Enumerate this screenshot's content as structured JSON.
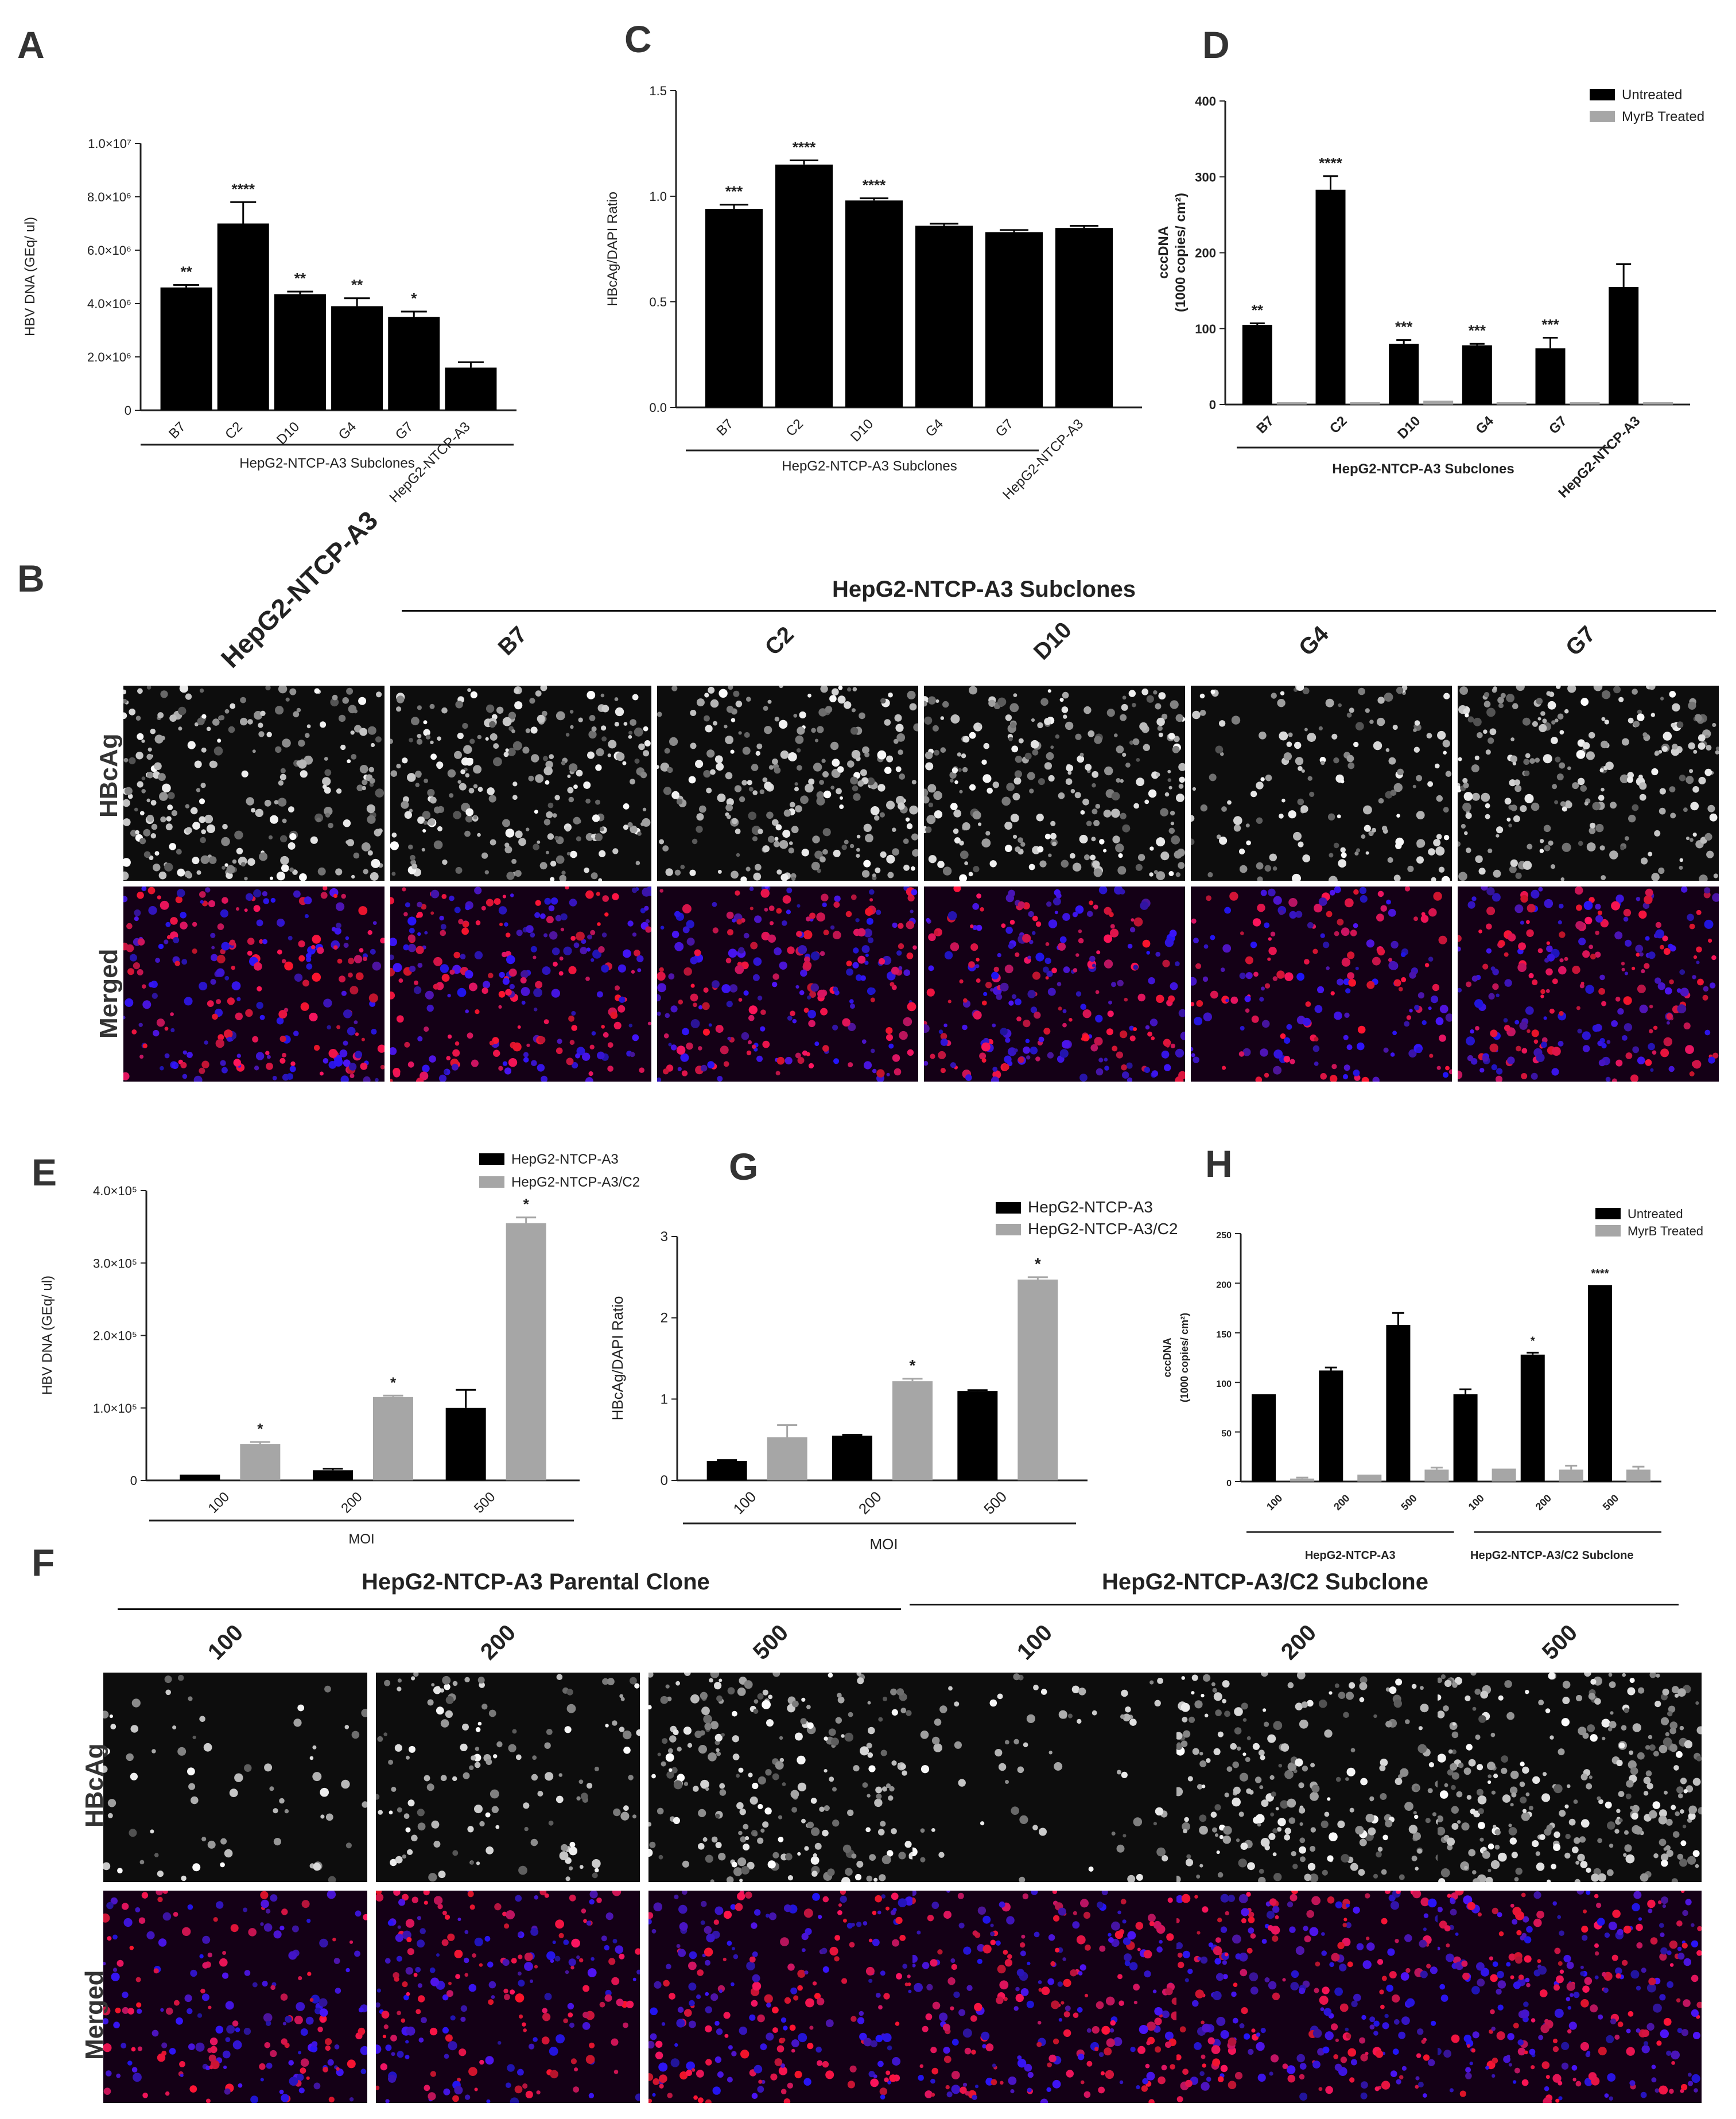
{
  "panel_letters": {
    "A": "A",
    "B": "B",
    "C": "C",
    "D": "D",
    "E": "E",
    "F": "F",
    "G": "G",
    "H": "H"
  },
  "chart_data": [
    {
      "id": "A",
      "type": "bar",
      "ylabel": "HBV DNA (GEq/ ul)",
      "categories": [
        "B7",
        "C2",
        "D10",
        "G4",
        "G7",
        "HepG2-NTCP-A3"
      ],
      "values": [
        4600000,
        7000000,
        4350000,
        3900000,
        3500000,
        1600000
      ],
      "errors": [
        100000,
        800000,
        100000,
        300000,
        200000,
        200000
      ],
      "significance": [
        "**",
        "****",
        "**",
        "**",
        "*",
        ""
      ],
      "ylim": [
        0,
        10000000
      ],
      "yticks": [
        0,
        2000000,
        4000000,
        6000000,
        8000000,
        10000000
      ],
      "ytick_labels": [
        "0",
        "2.0×10⁶",
        "4.0×10⁶",
        "6.0×10⁶",
        "8.0×10⁶",
        "1.0×10⁷"
      ],
      "group_label": "HepG2-NTCP-A3 Subclones"
    },
    {
      "id": "C",
      "type": "bar",
      "ylabel": "HBcAg/DAPI Ratio",
      "categories": [
        "B7",
        "C2",
        "D10",
        "G4",
        "G7",
        "HepG2-NTCP-A3"
      ],
      "values": [
        0.94,
        1.15,
        0.98,
        0.86,
        0.83,
        0.85
      ],
      "errors": [
        0.02,
        0.02,
        0.01,
        0.01,
        0.01,
        0.01
      ],
      "significance": [
        "***",
        "****",
        "****",
        "",
        "",
        ""
      ],
      "ylim": [
        0,
        1.5
      ],
      "yticks": [
        0,
        0.5,
        1.0,
        1.5
      ],
      "ytick_labels": [
        "0.0",
        "0.5",
        "1.0",
        "1.5"
      ],
      "group_label": "HepG2-NTCP-A3 Subclones"
    },
    {
      "id": "D",
      "type": "bar",
      "ylabel": "cccDNA",
      "ylabel2": "(1000 copies/ cm²)",
      "categories": [
        "B7",
        "C2",
        "D10",
        "G4",
        "G7",
        "HepG2-NTCP-A3"
      ],
      "series": [
        {
          "name": "Untreated",
          "values": [
            105,
            283,
            80,
            78,
            74,
            155
          ],
          "errors": [
            2,
            18,
            5,
            2,
            14,
            30
          ]
        },
        {
          "name": "MyrB Treated",
          "values": [
            3,
            3,
            5,
            3,
            3,
            3
          ],
          "errors": [
            0,
            0,
            0,
            0,
            0,
            0
          ]
        }
      ],
      "significance": [
        "**",
        "****",
        "***",
        "***",
        "***",
        ""
      ],
      "ylim": [
        0,
        400
      ],
      "yticks": [
        0,
        100,
        200,
        300,
        400
      ],
      "ytick_labels": [
        "0",
        "100",
        "200",
        "300",
        "400"
      ],
      "group_label": "HepG2-NTCP-A3 Subclones",
      "legend": "top-right",
      "colors": [
        "#000000",
        "#a6a6a6"
      ]
    },
    {
      "id": "E",
      "type": "bar",
      "ylabel": "HBV DNA (GEq/ ul)",
      "xlabel": "MOI",
      "categories": [
        "100",
        "200",
        "500"
      ],
      "series": [
        {
          "name": "HepG2-NTCP-A3",
          "values": [
            8000,
            14000,
            100000
          ],
          "errors": [
            0,
            2000,
            25000
          ]
        },
        {
          "name": "HepG2-NTCP-A3/C2",
          "values": [
            50000,
            115000,
            355000
          ],
          "errors": [
            3000,
            2000,
            8000
          ]
        }
      ],
      "significance": [
        "*",
        "*",
        "*"
      ],
      "ylim": [
        0,
        400000
      ],
      "yticks": [
        0,
        100000,
        200000,
        300000,
        400000
      ],
      "ytick_labels": [
        "0",
        "1.0×10⁵",
        "2.0×10⁵",
        "3.0×10⁵",
        "4.0×10⁵"
      ],
      "legend": "top-right",
      "colors": [
        "#000000",
        "#a6a6a6"
      ]
    },
    {
      "id": "G",
      "type": "bar",
      "ylabel": "HBcAg/DAPI Ratio",
      "xlabel": "MOI",
      "categories": [
        "100",
        "200",
        "500"
      ],
      "series": [
        {
          "name": "HepG2-NTCP-A3",
          "values": [
            0.24,
            0.55,
            1.1
          ],
          "errors": [
            0.01,
            0.01,
            0.01
          ]
        },
        {
          "name": "HepG2-NTCP-A3/C2",
          "values": [
            0.53,
            1.22,
            2.47
          ],
          "errors": [
            0.15,
            0.03,
            0.03
          ]
        }
      ],
      "significance": [
        "",
        "*",
        "*"
      ],
      "ylim": [
        0,
        3
      ],
      "yticks": [
        0,
        1,
        2,
        3
      ],
      "ytick_labels": [
        "0",
        "1",
        "2",
        "3"
      ],
      "legend": "top-right",
      "colors": [
        "#000000",
        "#a6a6a6"
      ]
    },
    {
      "id": "H",
      "type": "bar",
      "ylabel": "cccDNA",
      "ylabel2": "(1000 copies/ cm²)",
      "categories": [
        "100",
        "200",
        "500",
        "100",
        "200",
        "500"
      ],
      "series": [
        {
          "name": "Untreated",
          "values": [
            88,
            112,
            158,
            88,
            128,
            198
          ],
          "errors": [
            0,
            3,
            12,
            5,
            2,
            0
          ]
        },
        {
          "name": "MyrB Treated",
          "values": [
            3,
            7,
            12,
            13,
            12,
            12
          ],
          "errors": [
            1,
            0,
            2,
            0,
            4,
            3
          ]
        }
      ],
      "significance": [
        "",
        "",
        "",
        "",
        "*",
        "****"
      ],
      "ylim": [
        0,
        250
      ],
      "yticks": [
        0,
        50,
        100,
        150,
        200,
        250
      ],
      "ytick_labels": [
        "0",
        "50",
        "100",
        "150",
        "200",
        "250"
      ],
      "groups": [
        "HepG2-NTCP-A3",
        "HepG2-NTCP-A3/C2 Subclone"
      ],
      "legend": "top-right",
      "colors": [
        "#000000",
        "#a6a6a6"
      ]
    }
  ],
  "panel_B": {
    "header_left": "HepG2-NTCP-A3",
    "group_title": "HepG2-NTCP-A3 Subclones",
    "columns": [
      "B7",
      "C2",
      "D10",
      "G4",
      "G7"
    ],
    "rows": [
      "HBcAg",
      "Merged"
    ]
  },
  "panel_F": {
    "group_left": "HepG2-NTCP-A3 Parental Clone",
    "group_right": "HepG2-NTCP-A3/C2 Subclone",
    "columns": [
      "100",
      "200",
      "500",
      "100",
      "200",
      "500"
    ],
    "rows": [
      "HBcAg",
      "Merged"
    ]
  }
}
